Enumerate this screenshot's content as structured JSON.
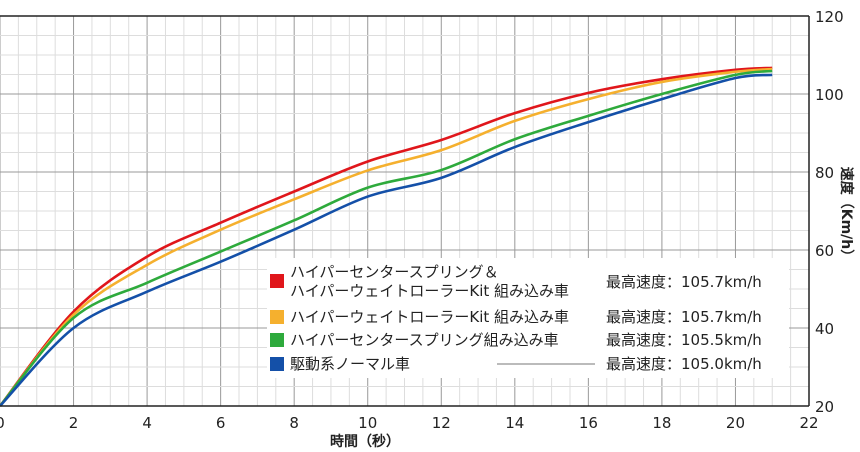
{
  "chart_data": {
    "type": "line",
    "title": "",
    "xlabel": "時間（秒）",
    "ylabel": "速度（Km/h）",
    "xlim": [
      0,
      22
    ],
    "ylim": [
      20,
      120
    ],
    "xticks": [
      "0",
      "2",
      "4",
      "6",
      "8",
      "10",
      "12",
      "14",
      "16",
      "18",
      "20",
      "22"
    ],
    "yticks": [
      "20",
      "40",
      "60",
      "80",
      "100",
      "120"
    ],
    "grid": true,
    "legend_position": "bottom-right",
    "x": [
      0,
      2,
      4,
      6,
      8,
      10,
      12,
      14,
      16,
      18,
      20,
      21
    ],
    "series": [
      {
        "name_line1": "ハイパーセンタースプリング＆",
        "name_line2": "ハイパーウェイトローラーKit 組み込み車",
        "max_speed": "最高速度：105.7km/h",
        "color": "#e0161b",
        "values": [
          20,
          44.2,
          58.3,
          67,
          75,
          82.7,
          88.2,
          95.1,
          100.3,
          103.8,
          106.2,
          106.7
        ]
      },
      {
        "name_line1": "ハイパーウェイトローラーKit 組み込み車",
        "max_speed": "最高速度：105.7km/h",
        "color": "#f5b02e",
        "values": [
          20,
          43.4,
          56.2,
          65.2,
          73,
          80.4,
          85.6,
          93.1,
          98.7,
          103.1,
          105.7,
          106.4
        ]
      },
      {
        "name_line1": "ハイパーセンタースプリング組み込み車",
        "max_speed": "最高速度：105.5km/h",
        "color": "#2eaa3c",
        "values": [
          20,
          42.6,
          51.6,
          59.6,
          67.6,
          76,
          80.5,
          88.4,
          94.4,
          100,
          104.9,
          105.9
        ]
      },
      {
        "name_line1": "駆動系ノーマル車",
        "max_speed": "最高速度：105.0km/h",
        "color": "#1450a8",
        "values": [
          20,
          40,
          49.3,
          57,
          65.2,
          73.7,
          78.5,
          86.4,
          92.8,
          98.7,
          104.1,
          104.9
        ]
      }
    ]
  }
}
